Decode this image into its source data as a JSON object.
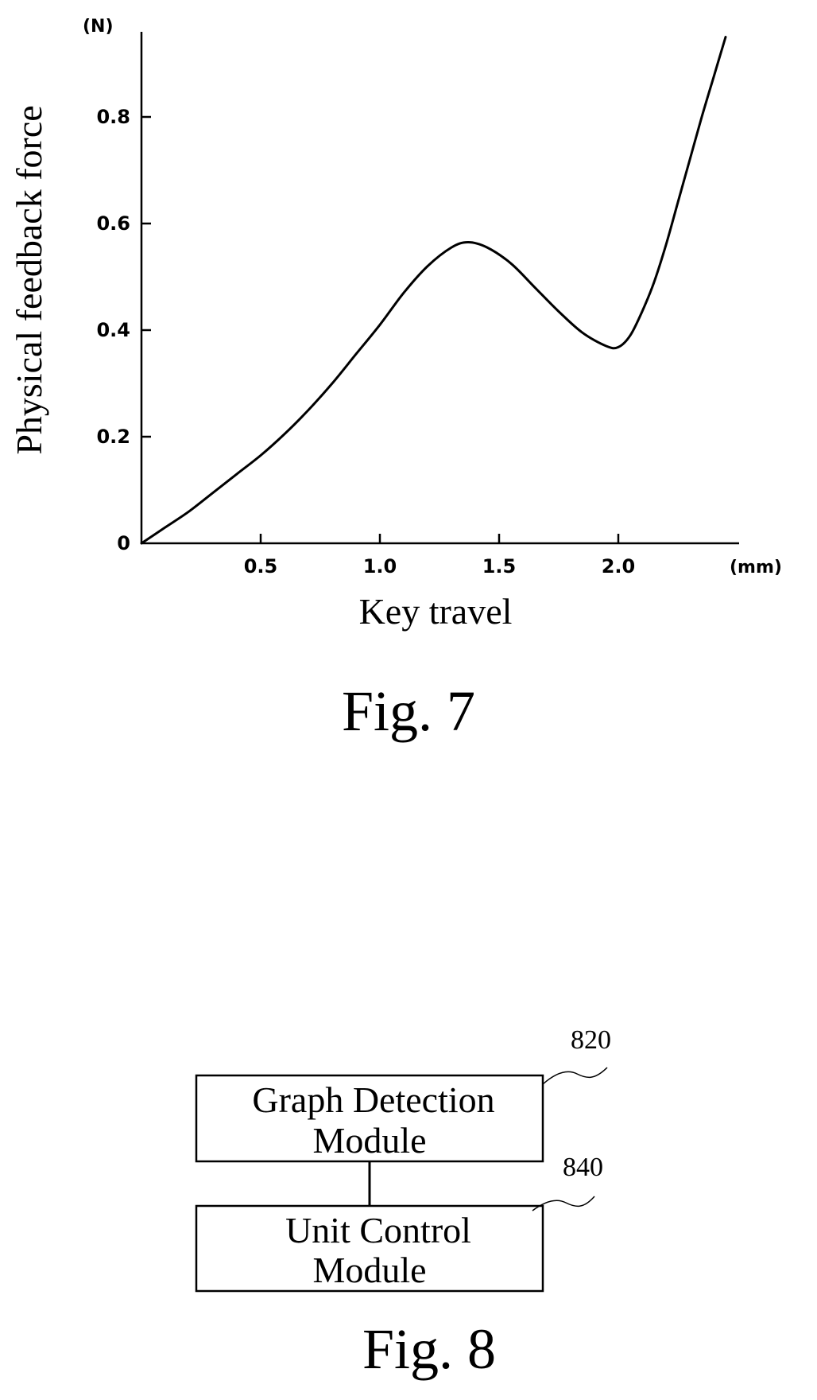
{
  "figure7": {
    "caption": "Fig. 7",
    "chart_data": {
      "type": "line",
      "xlabel": "Key travel",
      "ylabel": "Physical feedback force",
      "x_unit": "(mm)",
      "y_unit": "(N)",
      "xlim": [
        0,
        2.45
      ],
      "ylim": [
        0,
        0.95
      ],
      "xticks": [
        {
          "value": 0.5,
          "label": "0.5"
        },
        {
          "value": 1.0,
          "label": "1.0"
        },
        {
          "value": 1.5,
          "label": "1.5"
        },
        {
          "value": 2.0,
          "label": "2.0"
        }
      ],
      "yticks": [
        {
          "value": 0,
          "label": "0"
        },
        {
          "value": 0.2,
          "label": "0.2"
        },
        {
          "value": 0.4,
          "label": "0.4"
        },
        {
          "value": 0.6,
          "label": "0.6"
        },
        {
          "value": 0.8,
          "label": "0.8"
        }
      ],
      "grid": false,
      "series": [
        {
          "x": [
            0,
            0.1,
            0.2,
            0.3,
            0.4,
            0.5,
            0.6,
            0.7,
            0.8,
            0.9,
            1.0,
            1.1,
            1.2,
            1.3,
            1.37,
            1.45,
            1.55,
            1.65,
            1.75,
            1.85,
            1.95,
            2.0,
            2.05,
            2.1,
            2.15,
            2.2,
            2.25,
            2.3,
            2.35,
            2.4,
            2.45
          ],
          "y": [
            0,
            0.03,
            0.06,
            0.095,
            0.13,
            0.165,
            0.205,
            0.25,
            0.3,
            0.355,
            0.41,
            0.47,
            0.52,
            0.555,
            0.565,
            0.555,
            0.525,
            0.48,
            0.435,
            0.395,
            0.37,
            0.368,
            0.39,
            0.435,
            0.49,
            0.56,
            0.64,
            0.72,
            0.8,
            0.875,
            0.95
          ]
        }
      ]
    }
  },
  "figure8": {
    "caption": "Fig. 8",
    "blocks": [
      {
        "id": "820",
        "label_line1": "Graph Detection",
        "label_line2": "Module"
      },
      {
        "id": "840",
        "label_line1": "Unit Control",
        "label_line2": "Module"
      }
    ]
  }
}
